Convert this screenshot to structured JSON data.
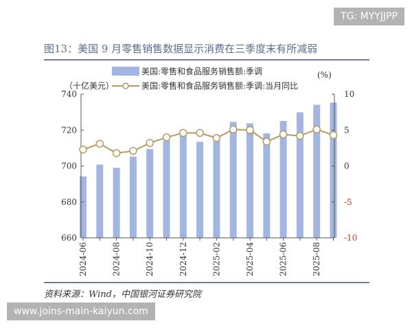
{
  "title": "图13：美国 9 月零售销售数据显示消费在三季度末有所减弱",
  "watermark_top": "TG: MYYJJPP",
  "watermark_bottom": "www.joins-main-kaiyun.com",
  "source": "资料来源：Wind，中国银河证券研究院",
  "chart_data": {
    "type": "bar+line",
    "title": "图13：美国 9 月零售销售数据显示消费在三季度末有所减弱",
    "left_unit": "（十亿美元）",
    "right_unit": "(%)",
    "categories": [
      "2024-06",
      "2024-07",
      "2024-08",
      "2024-09",
      "2024-10",
      "2024-11",
      "2024-12",
      "2025-01",
      "2025-02",
      "2025-03",
      "2025-04",
      "2025-05",
      "2025-06",
      "2025-07",
      "2025-08",
      "2025-09"
    ],
    "x_tick_labels": [
      "2024-06",
      "2024-08",
      "2024-10",
      "2024-12",
      "2025-02",
      "2025-04",
      "2025-06",
      "2025-08"
    ],
    "series": [
      {
        "name": "美国:零售和食品服务销售额:季调",
        "type": "bar",
        "axis": "left",
        "color": "#a3b6e1",
        "values": [
          694.2,
          700.8,
          699.0,
          705.3,
          709.5,
          714.2,
          717.7,
          713.5,
          714.0,
          724.6,
          723.8,
          718.2,
          725.1,
          729.9,
          734.1,
          735.3
        ]
      },
      {
        "name": "美国:零售和食品服务销售额:季调:当月同比",
        "type": "line",
        "axis": "right",
        "color": "#b59a5f",
        "values": [
          2.3,
          3.1,
          1.8,
          2.1,
          3.2,
          4.0,
          4.6,
          4.6,
          3.9,
          5.1,
          5.0,
          3.4,
          4.4,
          4.2,
          5.1,
          4.3
        ]
      }
    ],
    "ylim_left": [
      660,
      740
    ],
    "yticks_left": [
      "660",
      "680",
      "700",
      "720",
      "740"
    ],
    "ylim_right": [
      -10,
      10
    ],
    "yticks_right": [
      "-10",
      "-5",
      "0",
      "5",
      "10"
    ],
    "negative_tick_color": "#c0392b",
    "grid": false,
    "legend": "top"
  }
}
